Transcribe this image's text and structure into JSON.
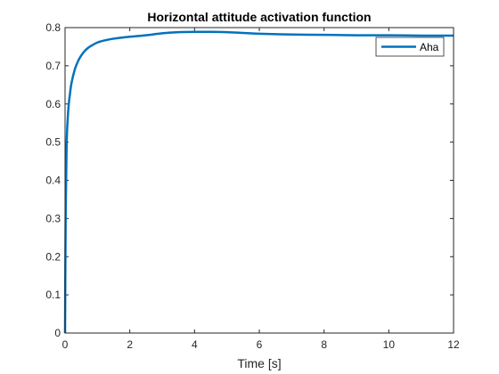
{
  "chart_data": {
    "type": "line",
    "title": "Horizontal attitude activation function",
    "xlabel": "Time [s]",
    "ylabel": "",
    "xlim": [
      0,
      12
    ],
    "ylim": [
      0,
      0.8
    ],
    "xticks": [
      0,
      2,
      4,
      6,
      8,
      10,
      12
    ],
    "yticks": [
      0,
      0.1,
      0.2,
      0.3,
      0.4,
      0.5,
      0.6,
      0.7,
      0.8
    ],
    "xtick_labels": [
      "0",
      "2",
      "4",
      "6",
      "8",
      "10",
      "12"
    ],
    "ytick_labels": [
      "0",
      "0.1",
      "0.2",
      "0.3",
      "0.4",
      "0.5",
      "0.6",
      "0.7",
      "0.8"
    ],
    "grid": false,
    "legend_position": "top-right",
    "series": [
      {
        "name": "Aha",
        "color": "#0072BD",
        "x": [
          0,
          0.02,
          0.05,
          0.1,
          0.15,
          0.2,
          0.3,
          0.4,
          0.5,
          0.6,
          0.7,
          0.8,
          1.0,
          1.2,
          1.5,
          2.0,
          2.5,
          3.0,
          3.5,
          4.0,
          4.5,
          5.0,
          5.5,
          6.0,
          7.0,
          8.0,
          9.0,
          10.0,
          11.0,
          12.0
        ],
        "y": [
          0,
          0.32,
          0.5,
          0.585,
          0.625,
          0.655,
          0.69,
          0.712,
          0.727,
          0.738,
          0.746,
          0.752,
          0.761,
          0.766,
          0.771,
          0.776,
          0.78,
          0.785,
          0.788,
          0.789,
          0.789,
          0.788,
          0.786,
          0.784,
          0.782,
          0.781,
          0.78,
          0.78,
          0.779,
          0.779
        ]
      }
    ]
  }
}
